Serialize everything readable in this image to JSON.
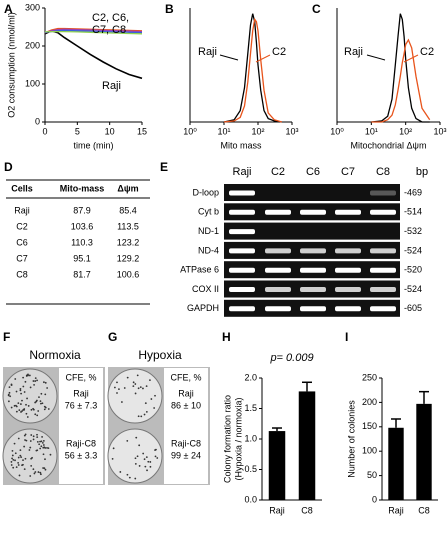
{
  "chart_data": [
    {
      "type": "line",
      "panel": "A",
      "ylabel": "O2 consumption (nmol/ml)",
      "xlabel": "time (min)",
      "x": [
        0,
        1,
        2,
        3,
        5,
        7,
        9,
        11,
        13,
        15
      ],
      "xlim": [
        0,
        15
      ],
      "xticks": [
        0,
        5,
        10,
        15
      ],
      "ylim": [
        0,
        300
      ],
      "yticks": [
        0,
        100,
        200,
        300
      ],
      "series": [
        {
          "name": "Raji",
          "color": "#000000",
          "values": [
            232,
            240,
            235,
            222,
            200,
            178,
            158,
            140,
            125,
            115
          ]
        },
        {
          "name": "C2",
          "color": "#e8541c",
          "values": [
            235,
            242,
            246,
            246,
            245,
            244,
            243,
            242,
            241,
            240
          ]
        },
        {
          "name": "C6",
          "color": "#9b3fb5",
          "values": [
            235,
            240,
            243,
            244,
            243,
            242,
            241,
            240,
            239,
            238
          ]
        },
        {
          "name": "C7",
          "color": "#3b5fd9",
          "values": [
            236,
            238,
            240,
            241,
            240,
            239,
            238,
            237,
            236,
            235
          ]
        },
        {
          "name": "C8",
          "color": "#8fd14f",
          "values": [
            237,
            238,
            238,
            238,
            237,
            236,
            235,
            234,
            233,
            232
          ]
        }
      ],
      "annotations": [
        {
          "text": "C2,",
          "color": "#e8541c"
        },
        {
          "text": "C6,",
          "color": "#9b3fb5"
        },
        {
          "text": "C7,",
          "color": "#3b5fd9"
        },
        {
          "text": "C8",
          "color": "#8fd14f"
        },
        {
          "text": "Raji",
          "color": "#000000"
        }
      ]
    },
    {
      "type": "line",
      "panel": "B",
      "xlabel": "Mito mass",
      "xscale": "log",
      "xlim": [
        1,
        1000
      ],
      "xticks": [
        {
          "value": 1,
          "label": "10⁰"
        },
        {
          "value": 10,
          "label": "10¹"
        },
        {
          "value": 100,
          "label": "10²"
        },
        {
          "value": 1000,
          "label": "10³"
        }
      ],
      "ylim": [
        0,
        100
      ],
      "x": [
        10,
        20,
        30,
        40,
        50,
        60,
        70,
        80,
        90,
        100,
        120,
        150,
        200,
        300,
        500
      ],
      "series": [
        {
          "name": "Raji",
          "color": "#000000",
          "values": [
            0,
            2,
            10,
            30,
            60,
            85,
            95,
            88,
            70,
            50,
            28,
            10,
            3,
            1,
            0
          ]
        },
        {
          "name": "C2",
          "color": "#e8541c",
          "values": [
            0,
            1,
            4,
            14,
            35,
            60,
            80,
            90,
            88,
            80,
            55,
            28,
            8,
            2,
            0
          ]
        }
      ],
      "annotations": [
        {
          "text": "Raji",
          "color": "#000000"
        },
        {
          "text": "C2",
          "color": "#e8541c"
        }
      ]
    },
    {
      "type": "line",
      "panel": "C",
      "xlabel": "Mitochondrial Δψm",
      "xscale": "log",
      "xlim": [
        1,
        1000
      ],
      "xticks": [
        {
          "value": 1,
          "label": "10⁰"
        },
        {
          "value": 10,
          "label": "10¹"
        },
        {
          "value": 100,
          "label": "10²"
        },
        {
          "value": 1000,
          "label": "10³"
        }
      ],
      "ylim": [
        0,
        100
      ],
      "x": [
        10,
        20,
        30,
        40,
        50,
        60,
        70,
        80,
        90,
        100,
        120,
        150,
        200,
        300,
        500
      ],
      "series": [
        {
          "name": "Raji",
          "color": "#000000",
          "values": [
            0,
            1,
            5,
            20,
            50,
            75,
            95,
            90,
            75,
            55,
            30,
            12,
            3,
            0,
            0
          ]
        },
        {
          "name": "C2",
          "color": "#e8541c",
          "values": [
            0,
            0,
            2,
            6,
            15,
            28,
            40,
            52,
            60,
            68,
            72,
            65,
            40,
            12,
            2
          ]
        }
      ],
      "annotations": [
        {
          "text": "Raji",
          "color": "#000000"
        },
        {
          "text": "C2",
          "color": "#e8541c"
        }
      ]
    },
    {
      "type": "bar",
      "panel": "H",
      "ylabel": [
        "Colony formation ratio",
        "(Hypoxia / normoxia)"
      ],
      "annotation": "p= 0.009",
      "categories": [
        "Raji",
        "C8"
      ],
      "values": [
        1.13,
        1.78
      ],
      "errors": [
        0.05,
        0.15
      ],
      "color": "#000000",
      "ylim": [
        0,
        2
      ],
      "yticks": [
        {
          "value": 0,
          "label": "0.0"
        },
        {
          "value": 0.5,
          "label": "0.5"
        },
        {
          "value": 1,
          "label": "1.0"
        },
        {
          "value": 1.5,
          "label": "1.5"
        },
        {
          "value": 2,
          "label": "2.0"
        }
      ]
    },
    {
      "type": "bar",
      "panel": "I",
      "ylabel": [
        "Number of colonies"
      ],
      "categories": [
        "Raji",
        "C8"
      ],
      "values": [
        148,
        197
      ],
      "errors": [
        18,
        25
      ],
      "color": "#000000",
      "ylim": [
        0,
        250
      ],
      "yticks": [
        0,
        50,
        100,
        150,
        200,
        250
      ]
    }
  ],
  "table": {
    "panel": "D",
    "header": [
      "Cells",
      "Mito-mass",
      "Δψm"
    ],
    "rows": [
      [
        "Raji",
        87.9,
        85.4
      ],
      [
        "C2",
        103.6,
        113.5
      ],
      [
        "C6",
        110.3,
        123.2
      ],
      [
        "C7",
        95.1,
        129.2
      ],
      [
        "C8",
        81.7,
        100.6
      ]
    ]
  },
  "gel": {
    "panel": "E",
    "lanes": [
      "Raji",
      "C2",
      "C6",
      "C7",
      "C8"
    ],
    "unit": "bp",
    "rows": [
      {
        "name": "D-loop",
        "bp": "-469",
        "bands": [
          1,
          0,
          0,
          0,
          0.3
        ]
      },
      {
        "name": "Cyt b",
        "bp": "-514",
        "bands": [
          1,
          1,
          1,
          1,
          1
        ]
      },
      {
        "name": "ND-1",
        "bp": "-532",
        "bands": [
          1,
          0,
          0,
          0,
          0
        ]
      },
      {
        "name": "ND-4",
        "bp": "-524",
        "bands": [
          1,
          0.8,
          0.8,
          0.8,
          0.8
        ]
      },
      {
        "name": "ATPase 6",
        "bp": "-520",
        "bands": [
          1,
          1,
          1,
          1,
          1
        ]
      },
      {
        "name": "COX II",
        "bp": "-524",
        "bands": [
          1,
          0.8,
          0.8,
          0.8,
          0.8
        ]
      },
      {
        "name": "GAPDH",
        "bp": "-605",
        "bands": [
          1,
          1,
          1,
          1,
          1
        ]
      }
    ]
  },
  "colony": [
    {
      "panel": "F",
      "title": "Normoxia",
      "header": "CFE, %",
      "rows": [
        {
          "label": "Raji",
          "value": "76 ± 7.3"
        },
        {
          "label": "Raji-C8",
          "value": "56 ± 3.3"
        }
      ]
    },
    {
      "panel": "G",
      "title": "Hypoxia",
      "header": "CFE, %",
      "rows": [
        {
          "label": "Raji",
          "value": "86 ± 10"
        },
        {
          "label": "Raji-C8",
          "value": "99 ± 24"
        }
      ]
    }
  ]
}
